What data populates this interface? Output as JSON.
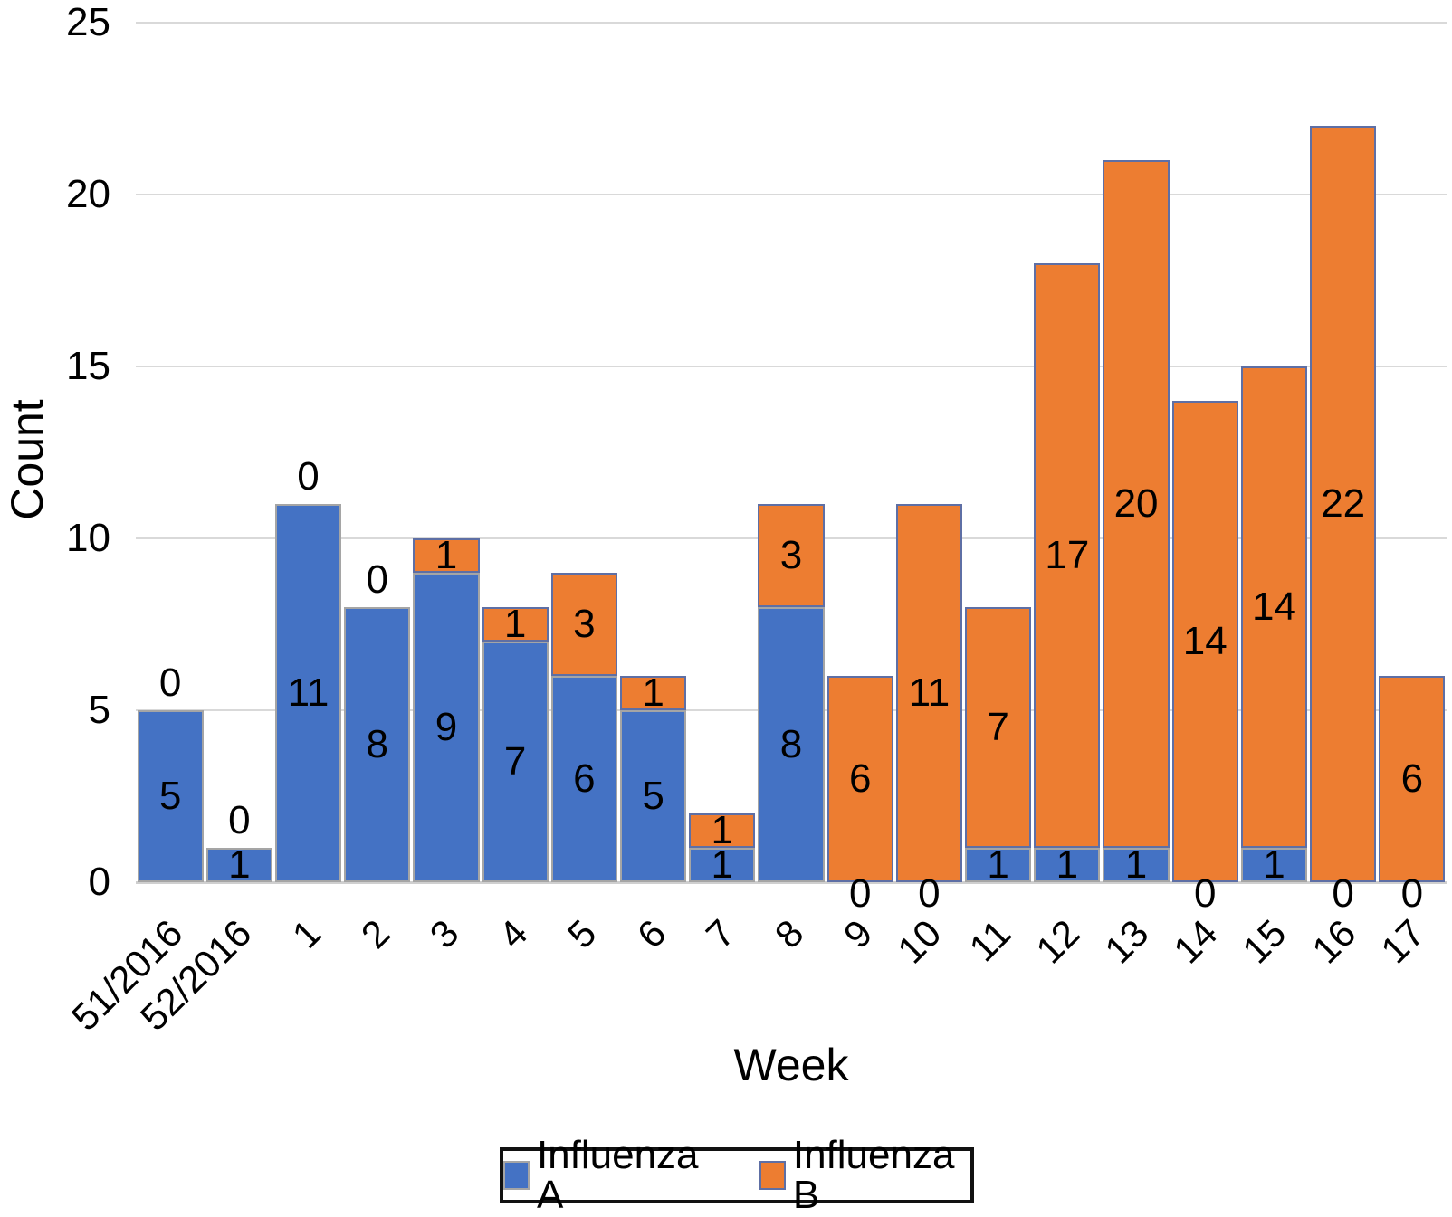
{
  "chart_data": {
    "type": "bar",
    "stacked": true,
    "title": "",
    "xlabel": "Week",
    "ylabel": "Count",
    "ylim": [
      0,
      25
    ],
    "yticks": [
      0,
      5,
      10,
      15,
      20,
      25
    ],
    "grid": true,
    "legend_position": "bottom",
    "categories": [
      "51/2016",
      "52/2016",
      "1",
      "2",
      "3",
      "4",
      "5",
      "6",
      "7",
      "8",
      "9",
      "10",
      "11",
      "12",
      "13",
      "14",
      "15",
      "16",
      "17"
    ],
    "series": [
      {
        "name": "Influenza A",
        "color": "#4472C4",
        "border_color": "#a5a5a5",
        "values": [
          5,
          1,
          11,
          8,
          9,
          7,
          6,
          5,
          1,
          8,
          0,
          0,
          1,
          1,
          1,
          0,
          1,
          0,
          0
        ]
      },
      {
        "name": "Influenza B",
        "color": "#ED7D31",
        "border_color": "#5e6fa5",
        "values": [
          0,
          0,
          0,
          0,
          1,
          1,
          3,
          1,
          1,
          3,
          6,
          11,
          7,
          17,
          20,
          14,
          14,
          22,
          6
        ]
      }
    ]
  }
}
